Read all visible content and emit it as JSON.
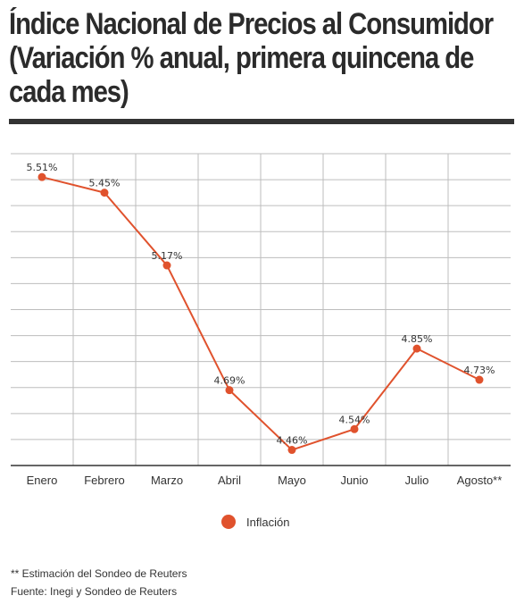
{
  "title_lines": [
    "Índice Nacional de Precios al Consumidor",
    "(Variación % anual, primera quincena de",
    "cada mes)"
  ],
  "colors": {
    "series": "#e0522d",
    "grid": "#bdbdbd",
    "axis": "#333333",
    "rule": "#333333"
  },
  "chart_data": {
    "type": "line",
    "title": "Índice Nacional de Precios al Consumidor (Variación % anual, primera quincena de cada mes)",
    "categories": [
      "Enero",
      "Febrero",
      "Marzo",
      "Abril",
      "Mayo",
      "Junio",
      "Julio",
      "Agosto**"
    ],
    "series": [
      {
        "name": "Inflación",
        "values": [
          5.51,
          5.45,
          5.17,
          4.69,
          4.46,
          4.54,
          4.85,
          4.73
        ]
      }
    ],
    "data_labels": [
      "5.51%",
      "5.45%",
      "5.17%",
      "4.69%",
      "4.46%",
      "4.54%",
      "4.85%",
      "4.73%"
    ],
    "ylim": [
      4.4,
      5.6
    ],
    "grid": true,
    "legend": "bottom-center",
    "xlabel": "",
    "ylabel": ""
  },
  "footnotes": [
    "** Estimación del Sondeo de Reuters",
    "Fuente: Inegi y Sondeo de Reuters"
  ]
}
